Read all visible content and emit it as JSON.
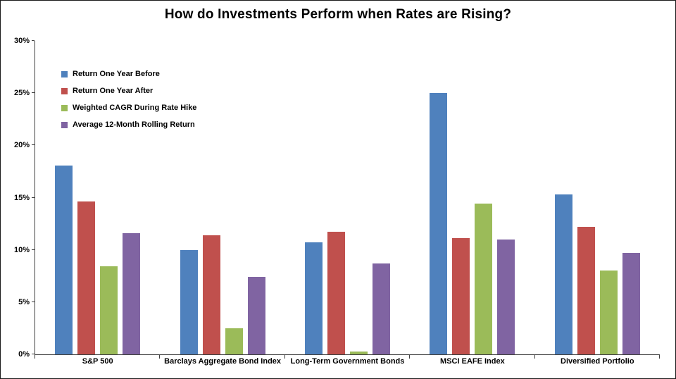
{
  "chart_title": "How do Investments Perform when Rates are Rising?",
  "chart_data": {
    "type": "bar",
    "title": "How do Investments Perform when Rates are Rising?",
    "categories": [
      "S&P 500",
      "Barclays Aggregate Bond Index",
      "Long-Term Government Bonds",
      "MSCI EAFE Index",
      "Diversified Portfolio"
    ],
    "series": [
      {
        "name": "Return One Year Before",
        "color": "#4F81BD",
        "values": [
          18.1,
          10.0,
          10.7,
          25.0,
          15.3
        ]
      },
      {
        "name": "Return One Year After",
        "color": "#C0504D",
        "values": [
          14.6,
          11.4,
          11.7,
          11.1,
          12.2
        ]
      },
      {
        "name": "Weighted CAGR During Rate Hike",
        "color": "#9BBB59",
        "values": [
          8.4,
          2.5,
          0.3,
          14.4,
          8.0
        ]
      },
      {
        "name": "Average 12-Month Rolling Return",
        "color": "#8064A2",
        "values": [
          11.6,
          7.4,
          8.7,
          11.0,
          9.7
        ]
      }
    ],
    "ylim": [
      0,
      30
    ],
    "y_ticks": [
      {
        "value": 0,
        "label": "0%"
      },
      {
        "value": 5,
        "label": "5%"
      },
      {
        "value": 10,
        "label": "10%"
      },
      {
        "value": 15,
        "label": "15%"
      },
      {
        "value": 20,
        "label": "20%"
      },
      {
        "value": 25,
        "label": "25%"
      },
      {
        "value": 30,
        "label": "30%"
      }
    ],
    "xlabel": "",
    "ylabel": "",
    "grid": false,
    "legend_position": "top-left-inside"
  }
}
